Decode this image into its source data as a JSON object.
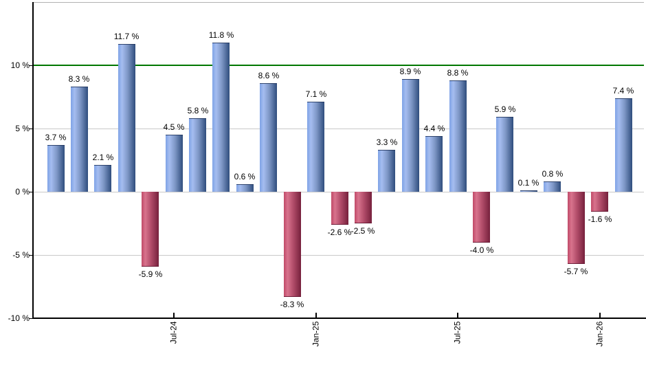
{
  "chart_data": {
    "type": "bar",
    "title": "",
    "xlabel": "",
    "ylabel": "",
    "unit": "%",
    "values": [
      3.7,
      8.3,
      2.1,
      11.7,
      -5.9,
      4.5,
      5.8,
      11.8,
      0.6,
      8.6,
      -8.3,
      7.1,
      -2.6,
      -2.5,
      3.3,
      8.9,
      4.4,
      8.8,
      -4.0,
      5.9,
      0.1,
      0.8,
      -5.7,
      -1.6,
      7.4
    ],
    "bar_labels": [
      "3.7 %",
      "8.3 %",
      "2.1 %",
      "11.7 %",
      "-5.9 %",
      "4.5 %",
      "5.8 %",
      "11.8 %",
      "0.6 %",
      "8.6 %",
      "-8.3 %",
      "7.1 %",
      "-2.6 %",
      "-2.5 %",
      "3.3 %",
      "8.9 %",
      "4.4 %",
      "8.8 %",
      "-4.0 %",
      "5.9 %",
      "0.1 %",
      "0.8 %",
      "-5.7 %",
      "-1.6 %",
      "7.4 %"
    ],
    "x_ticks": [
      {
        "label": "Jul-24",
        "bar_index": 5
      },
      {
        "label": "Jan-25",
        "bar_index": 11
      },
      {
        "label": "Jul-25",
        "bar_index": 17
      },
      {
        "label": "Jan-26",
        "bar_index": 23
      }
    ],
    "y_ticks": [
      {
        "value": 10,
        "label": "10 %"
      },
      {
        "value": 5,
        "label": "5 %"
      },
      {
        "value": 0,
        "label": "0 %"
      },
      {
        "value": -5,
        "label": "-5 %"
      },
      {
        "value": -10,
        "label": "-10 %"
      }
    ],
    "ylim": [
      -10,
      15
    ],
    "grid": "horizontal",
    "legend": "none",
    "reference_line": {
      "value": 10,
      "color": "#007700"
    },
    "colors": {
      "positive_bar_gradient": [
        "#7fa3e6",
        "#a5bdf0",
        "#7e97c6",
        "#2f4d7d"
      ],
      "negative_bar_gradient": [
        "#c04a68",
        "#d8738d",
        "#b14c69",
        "#76203c"
      ],
      "gridline": "#c9c9c9",
      "plot_top_border": "#b2b2b2",
      "axis": "#000000",
      "label_text": "#000000",
      "background": "#ffffff"
    }
  }
}
